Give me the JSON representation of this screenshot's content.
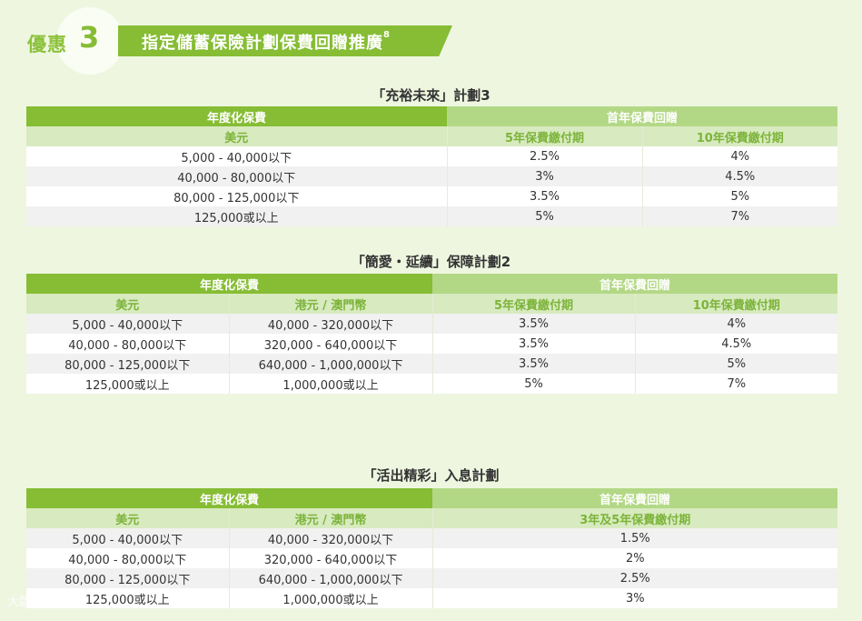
{
  "header": {
    "promo_label": "優惠",
    "promo_number": "3",
    "banner_title": "指定儲蓄保險計劃保費回贈推廣",
    "banner_sup": "8"
  },
  "plan1": {
    "title": "「充裕未來」計劃3",
    "h_premium": "年度化保費",
    "h_rebate": "首年保費回贈",
    "cols": [
      "美元",
      "5年保費繳付期",
      "10年保費繳付期"
    ],
    "rows": [
      [
        "5,000 - 40,000以下",
        "2.5%",
        "4%"
      ],
      [
        "40,000 - 80,000以下",
        "3%",
        "4.5%"
      ],
      [
        "80,000 - 125,000以下",
        "3.5%",
        "5%"
      ],
      [
        "125,000或以上",
        "5%",
        "7%"
      ]
    ]
  },
  "plan2": {
    "title": "「簡愛・延續」保障計劃2",
    "h_premium": "年度化保費",
    "h_rebate": "首年保費回贈",
    "cols": [
      "美元",
      "港元 / 澳門幣",
      "5年保費繳付期",
      "10年保費繳付期"
    ],
    "rows": [
      [
        "5,000 - 40,000以下",
        "40,000 - 320,000以下",
        "3.5%",
        "4%"
      ],
      [
        "40,000 - 80,000以下",
        "320,000 - 640,000以下",
        "3.5%",
        "4.5%"
      ],
      [
        "80,000 - 125,000以下",
        "640,000 - 1,000,000以下",
        "3.5%",
        "5%"
      ],
      [
        "125,000或以上",
        "1,000,000或以上",
        "5%",
        "7%"
      ]
    ]
  },
  "plan3": {
    "title": "「活出精彩」入息計劃",
    "h_premium": "年度化保費",
    "h_rebate": "首年保費回贈",
    "cols": [
      "美元",
      "港元 / 澳門幣",
      "3年及5年保費繳付期"
    ],
    "rows": [
      [
        "5,000 - 40,000以下",
        "40,000 - 320,000以下",
        "1.5%"
      ],
      [
        "40,000 - 80,000以下",
        "320,000 - 640,000以下",
        "2%"
      ],
      [
        "80,000 - 125,000以下",
        "640,000 - 1,000,000以下",
        "2.5%"
      ],
      [
        "125,000或以上",
        "1,000,000或以上",
        "3%"
      ]
    ]
  },
  "watermark": "大歐聯盟",
  "colors": {
    "primary_green": "#86bd34",
    "light_green": "#b3d885",
    "subheader_green": "#d8eabf",
    "background": "#eef6e0"
  }
}
